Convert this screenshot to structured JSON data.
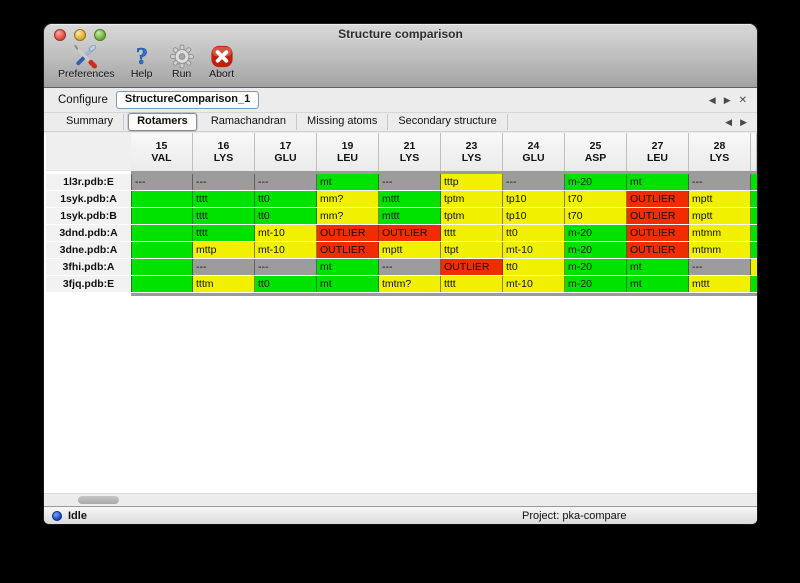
{
  "window": {
    "title": "Structure comparison"
  },
  "traffic_lights": [
    "close",
    "minimize",
    "zoom"
  ],
  "toolbar": {
    "items": [
      {
        "label": "Preferences",
        "icon": "tools-icon"
      },
      {
        "label": "Help",
        "icon": "question-icon"
      },
      {
        "label": "Run",
        "icon": "gear-icon"
      },
      {
        "label": "Abort",
        "icon": "abort-icon"
      }
    ]
  },
  "configure": {
    "label": "Configure",
    "value": "StructureComparison_1",
    "nav": {
      "prev": "◀",
      "next": "▶",
      "close": "✕"
    }
  },
  "tabs": {
    "items": [
      "Summary",
      "Rotamers",
      "Ramachandran",
      "Missing atoms",
      "Secondary structure"
    ],
    "selected": "Rotamers",
    "nav": {
      "prev": "◀",
      "next": "▶"
    }
  },
  "colors": {
    "green": "#00e300",
    "yellow": "#f0f000",
    "red": "#f12d00",
    "gray": "#9c9c9c"
  },
  "table": {
    "columns": [
      {
        "num": "15",
        "res": "VAL"
      },
      {
        "num": "16",
        "res": "LYS"
      },
      {
        "num": "17",
        "res": "GLU"
      },
      {
        "num": "19",
        "res": "LEU"
      },
      {
        "num": "21",
        "res": "LYS"
      },
      {
        "num": "23",
        "res": "LYS"
      },
      {
        "num": "24",
        "res": "GLU"
      },
      {
        "num": "25",
        "res": "ASP"
      },
      {
        "num": "27",
        "res": "LEU"
      },
      {
        "num": "28",
        "res": "LYS"
      }
    ],
    "rows": [
      {
        "label": "1l3r.pdb:E",
        "cells": [
          {
            "t": "---",
            "c": "gray"
          },
          {
            "t": "---",
            "c": "gray"
          },
          {
            "t": "---",
            "c": "gray"
          },
          {
            "t": "mt",
            "c": "green"
          },
          {
            "t": "---",
            "c": "gray"
          },
          {
            "t": "tttp",
            "c": "yellow"
          },
          {
            "t": "---",
            "c": "gray"
          },
          {
            "t": "m-20",
            "c": "green"
          },
          {
            "t": "mt",
            "c": "green"
          },
          {
            "t": "---",
            "c": "gray"
          }
        ],
        "partial": "green"
      },
      {
        "label": "1syk.pdb:A",
        "cells": [
          {
            "t": "",
            "c": "green"
          },
          {
            "t": "tttt",
            "c": "green"
          },
          {
            "t": "tt0",
            "c": "green"
          },
          {
            "t": "mm?",
            "c": "yellow"
          },
          {
            "t": "mttt",
            "c": "green"
          },
          {
            "t": "tptm",
            "c": "yellow"
          },
          {
            "t": "tp10",
            "c": "yellow"
          },
          {
            "t": "t70",
            "c": "yellow"
          },
          {
            "t": "OUTLIER",
            "c": "red"
          },
          {
            "t": "mptt",
            "c": "yellow"
          }
        ],
        "partial": "green"
      },
      {
        "label": "1syk.pdb:B",
        "cells": [
          {
            "t": "",
            "c": "green"
          },
          {
            "t": "tttt",
            "c": "green"
          },
          {
            "t": "tt0",
            "c": "green"
          },
          {
            "t": "mm?",
            "c": "yellow"
          },
          {
            "t": "mttt",
            "c": "green"
          },
          {
            "t": "tptm",
            "c": "yellow"
          },
          {
            "t": "tp10",
            "c": "yellow"
          },
          {
            "t": "t70",
            "c": "yellow"
          },
          {
            "t": "OUTLIER",
            "c": "red"
          },
          {
            "t": "mptt",
            "c": "yellow"
          }
        ],
        "partial": "green"
      },
      {
        "label": "3dnd.pdb:A",
        "cells": [
          {
            "t": "",
            "c": "green"
          },
          {
            "t": "tttt",
            "c": "green"
          },
          {
            "t": "mt-10",
            "c": "yellow"
          },
          {
            "t": "OUTLIER",
            "c": "red"
          },
          {
            "t": "OUTLIER",
            "c": "red"
          },
          {
            "t": "tttt",
            "c": "yellow"
          },
          {
            "t": "tt0",
            "c": "yellow"
          },
          {
            "t": "m-20",
            "c": "green"
          },
          {
            "t": "OUTLIER",
            "c": "red"
          },
          {
            "t": "mtmm",
            "c": "yellow"
          }
        ],
        "partial": "green"
      },
      {
        "label": "3dne.pdb:A",
        "cells": [
          {
            "t": "",
            "c": "green"
          },
          {
            "t": "mttp",
            "c": "yellow"
          },
          {
            "t": "mt-10",
            "c": "yellow"
          },
          {
            "t": "OUTLIER",
            "c": "red"
          },
          {
            "t": "mptt",
            "c": "yellow"
          },
          {
            "t": "ttpt",
            "c": "yellow"
          },
          {
            "t": "mt-10",
            "c": "yellow"
          },
          {
            "t": "m-20",
            "c": "green"
          },
          {
            "t": "OUTLIER",
            "c": "red"
          },
          {
            "t": "mtmm",
            "c": "yellow"
          }
        ],
        "partial": "green"
      },
      {
        "label": "3fhi.pdb:A",
        "cells": [
          {
            "t": "",
            "c": "green"
          },
          {
            "t": "---",
            "c": "gray"
          },
          {
            "t": "---",
            "c": "gray"
          },
          {
            "t": "mt",
            "c": "green"
          },
          {
            "t": "---",
            "c": "gray"
          },
          {
            "t": "OUTLIER",
            "c": "red"
          },
          {
            "t": "tt0",
            "c": "yellow"
          },
          {
            "t": "m-20",
            "c": "green"
          },
          {
            "t": "mt",
            "c": "green"
          },
          {
            "t": "---",
            "c": "gray"
          }
        ],
        "partial": "yellow"
      },
      {
        "label": "3fjq.pdb:E",
        "cells": [
          {
            "t": "",
            "c": "green"
          },
          {
            "t": "tttm",
            "c": "yellow"
          },
          {
            "t": "tt0",
            "c": "green"
          },
          {
            "t": "mt",
            "c": "green"
          },
          {
            "t": "tmtm?",
            "c": "yellow"
          },
          {
            "t": "tttt",
            "c": "yellow"
          },
          {
            "t": "mt-10",
            "c": "yellow"
          },
          {
            "t": "m-20",
            "c": "green"
          },
          {
            "t": "mt",
            "c": "green"
          },
          {
            "t": "mttt",
            "c": "yellow"
          }
        ],
        "partial": "green"
      }
    ]
  },
  "statusbar": {
    "status": "Idle",
    "project": "Project: pka-compare"
  }
}
